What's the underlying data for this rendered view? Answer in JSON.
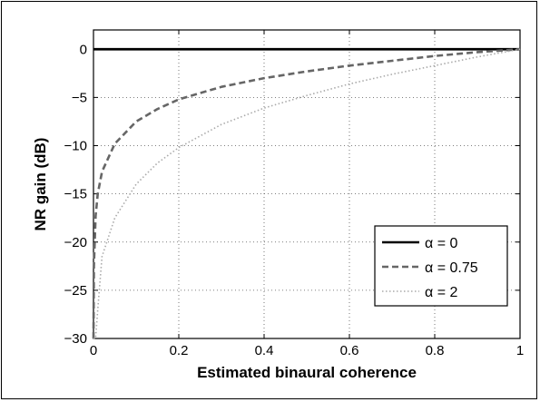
{
  "chart_data": {
    "type": "line",
    "title": "",
    "xlabel": "Estimated binaural coherence",
    "ylabel": "NR gain (dB)",
    "xlim": [
      0,
      1
    ],
    "ylim": [
      -30,
      2
    ],
    "x_ticks": [
      "0",
      "0.2",
      "0.4",
      "0.6",
      "0.8",
      "1"
    ],
    "y_ticks": [
      "0",
      "−5",
      "−10",
      "−15",
      "−20",
      "−25",
      "−30"
    ],
    "grid": true,
    "legend_position": "bottom-right",
    "x": [
      0,
      0.001,
      0.005,
      0.01,
      0.02,
      0.05,
      0.1,
      0.15,
      0.2,
      0.3,
      0.4,
      0.5,
      0.6,
      0.7,
      0.8,
      0.9,
      1.0
    ],
    "series": [
      {
        "name": "α = 0",
        "values": [
          0,
          0,
          0,
          0,
          0,
          0,
          0,
          0,
          0,
          0,
          0,
          0,
          0,
          0,
          0,
          0,
          0
        ],
        "color": "#000000",
        "style": "solid"
      },
      {
        "name": "α = 0.75",
        "values": [
          -30,
          -22.5,
          -17.3,
          -15.0,
          -12.7,
          -9.8,
          -7.5,
          -6.2,
          -5.2,
          -3.9,
          -3.0,
          -2.3,
          -1.7,
          -1.2,
          -0.7,
          -0.3,
          0
        ],
        "color": "#666666",
        "style": "dashed"
      },
      {
        "name": "α = 2",
        "values": [
          -30,
          -30,
          -30,
          -27,
          -21.5,
          -17.5,
          -14.0,
          -11.8,
          -10.2,
          -7.8,
          -6.1,
          -4.8,
          -3.6,
          -2.6,
          -1.7,
          -0.8,
          0
        ],
        "color": "#aaaaaa",
        "style": "dotted"
      }
    ]
  }
}
